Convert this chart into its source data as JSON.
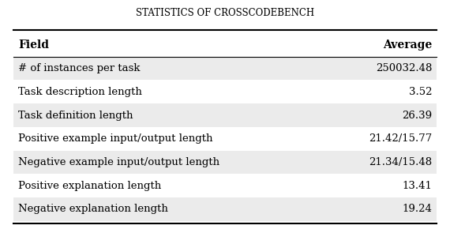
{
  "title": "Statistics of CrossCodeBench",
  "col_headers": [
    "Field",
    "Average"
  ],
  "rows": [
    [
      "# of instances per task",
      "250032.48"
    ],
    [
      "Task description length",
      "3.52"
    ],
    [
      "Task definition length",
      "26.39"
    ],
    [
      "Positive example input/output length",
      "21.42/15.77"
    ],
    [
      "Negative example input/output length",
      "21.34/15.48"
    ],
    [
      "Positive explanation length",
      "13.41"
    ],
    [
      "Negative explanation length",
      "19.24"
    ]
  ],
  "bg_color": "#ebebeb",
  "alt_row_color": "#ffffff",
  "title_fontsize": 8.5,
  "header_fontsize": 10,
  "row_fontsize": 9.5
}
